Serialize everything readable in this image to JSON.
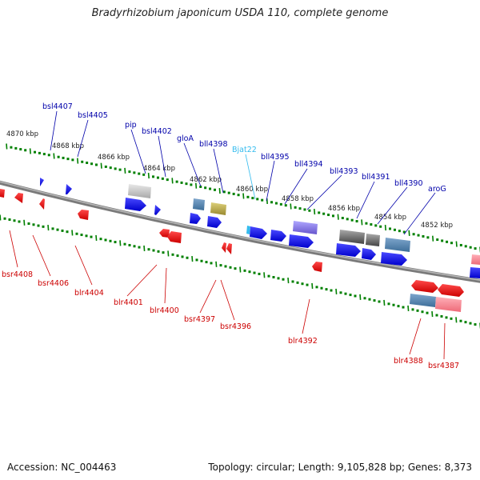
{
  "title": "Bradyrhizobium japonicum USDA 110, complete genome",
  "footer": {
    "accession": "Accession: NC_004463",
    "stats": "Topology: circular; Length: 9,105,828 bp; Genes: 8,373"
  },
  "colors": {
    "backbone": "#808080",
    "plus_strand_gene": "#0000ee",
    "minus_strand_gene": "#ee0000",
    "trna": "#33bbee",
    "tick": "#008000",
    "upper_label": "#0000aa",
    "lower_label": "#cc0000"
  },
  "kbp_labels": [
    "4870 kbp",
    "4868 kbp",
    "4866 kbp",
    "4864 kbp",
    "4862 kbp",
    "4860 kbp",
    "4858 kbp",
    "4856 kbp",
    "4854 kbp",
    "4852 kbp"
  ],
  "upper_genes": [
    "bsl4407",
    "bsl4405",
    "pip",
    "bsl4402",
    "gloA",
    "bll4398",
    "Bjat22",
    "bll4395",
    "bll4394",
    "bll4393",
    "bll4391",
    "bll4390",
    "aroG"
  ],
  "lower_genes": [
    "bsr4408",
    "bsr4406",
    "blr4404",
    "blr4401",
    "blr4400",
    "bsr4397",
    "bsr4396",
    "blr4392",
    "blr4388",
    "bsr4387"
  ]
}
